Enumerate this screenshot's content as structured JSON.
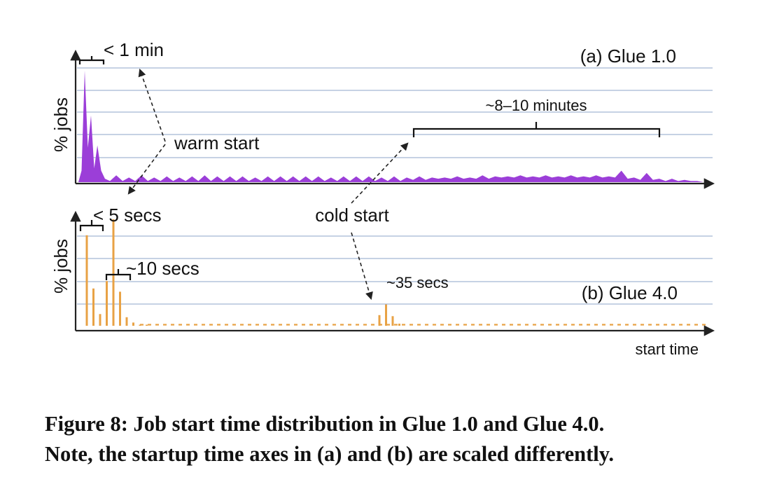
{
  "chart_data": [
    {
      "type": "area",
      "panel": "a",
      "title": "(a) Glue 1.0",
      "ylabel": "% jobs",
      "xlabel": "",
      "color": "#9b3ed8",
      "grid": true,
      "ylim": [
        0,
        100
      ],
      "series": [
        {
          "points": [
            [
              0,
              0
            ],
            [
              0.5,
              10
            ],
            [
              1,
              97
            ],
            [
              1.5,
              30
            ],
            [
              2,
              58
            ],
            [
              2.5,
              12
            ],
            [
              3,
              32
            ],
            [
              3.6,
              10
            ],
            [
              4.2,
              3
            ],
            [
              5,
              1
            ],
            [
              6,
              6
            ],
            [
              7,
              1
            ],
            [
              8,
              4
            ],
            [
              9,
              1
            ],
            [
              10,
              6
            ],
            [
              11,
              1
            ],
            [
              12,
              4
            ],
            [
              13,
              1
            ],
            [
              14,
              5
            ],
            [
              15,
              1
            ],
            [
              16,
              4
            ],
            [
              17,
              1
            ],
            [
              18,
              5
            ],
            [
              19,
              1
            ],
            [
              20,
              6
            ],
            [
              21,
              1
            ],
            [
              22,
              5
            ],
            [
              23,
              1
            ],
            [
              24,
              5
            ],
            [
              25,
              1
            ],
            [
              26,
              5
            ],
            [
              27,
              1
            ],
            [
              28,
              4
            ],
            [
              29,
              1
            ],
            [
              30,
              5
            ],
            [
              31,
              1
            ],
            [
              32,
              5
            ],
            [
              33,
              1
            ],
            [
              34,
              5
            ],
            [
              35,
              1
            ],
            [
              36,
              5
            ],
            [
              37,
              1
            ],
            [
              38,
              5
            ],
            [
              39,
              1
            ],
            [
              40,
              4
            ],
            [
              41,
              1
            ],
            [
              42,
              5
            ],
            [
              43,
              1
            ],
            [
              44,
              5
            ],
            [
              45,
              1
            ],
            [
              46,
              5
            ],
            [
              47,
              1
            ],
            [
              48,
              4
            ],
            [
              49,
              1
            ],
            [
              50,
              5
            ],
            [
              51,
              1
            ],
            [
              52,
              4
            ],
            [
              53,
              2
            ],
            [
              54,
              5
            ],
            [
              55,
              2
            ],
            [
              56,
              4
            ],
            [
              57,
              3
            ],
            [
              58,
              4
            ],
            [
              59,
              3
            ],
            [
              60,
              5
            ],
            [
              61,
              3
            ],
            [
              62,
              4
            ],
            [
              63,
              3
            ],
            [
              64,
              6
            ],
            [
              65,
              3
            ],
            [
              66,
              5
            ],
            [
              67,
              4
            ],
            [
              68,
              5
            ],
            [
              69,
              4
            ],
            [
              70,
              6
            ],
            [
              71,
              4
            ],
            [
              72,
              5
            ],
            [
              73,
              4
            ],
            [
              74,
              6
            ],
            [
              75,
              4
            ],
            [
              76,
              5
            ],
            [
              77,
              4
            ],
            [
              78,
              6
            ],
            [
              79,
              4
            ],
            [
              80,
              5
            ],
            [
              81,
              4
            ],
            [
              82,
              6
            ],
            [
              83,
              4
            ],
            [
              84,
              5
            ],
            [
              85,
              4
            ],
            [
              86,
              10
            ],
            [
              87,
              3
            ],
            [
              88,
              4
            ],
            [
              89,
              2
            ],
            [
              90,
              8
            ],
            [
              91,
              2
            ],
            [
              92,
              3
            ],
            [
              93,
              1
            ],
            [
              94,
              3
            ],
            [
              95,
              1
            ],
            [
              96,
              2
            ],
            [
              97,
              1
            ],
            [
              98,
              1
            ],
            [
              99,
              0
            ],
            [
              100,
              0
            ]
          ]
        }
      ],
      "annotations": {
        "range_label": "< 1 min",
        "plateau_label": "~8–10 minutes",
        "warm_label": "warm start"
      }
    },
    {
      "type": "bar",
      "panel": "b",
      "title": "(b) Glue 4.0",
      "ylabel": "% jobs",
      "xlabel": "start time",
      "color": "#e8a245",
      "grid": true,
      "ylim": [
        0,
        100
      ],
      "x": [
        1,
        2,
        3,
        4,
        5,
        6,
        7,
        8,
        9,
        10,
        45,
        46,
        47,
        48
      ],
      "values": [
        85,
        35,
        11,
        42,
        100,
        32,
        8,
        3,
        1,
        1,
        10,
        20,
        9,
        2
      ],
      "tail_level": 1,
      "annotations": {
        "range_label": "< 5 secs",
        "second_label": "~10 secs",
        "peak_label": "~35 secs",
        "cold_label": "cold start"
      }
    }
  ],
  "caption": {
    "line1": "Figure 8: Job start time distribution in Glue 1.0 and Glue 4.0.",
    "line2": "Note, the startup time axes in (a) and (b) are scaled differently."
  }
}
